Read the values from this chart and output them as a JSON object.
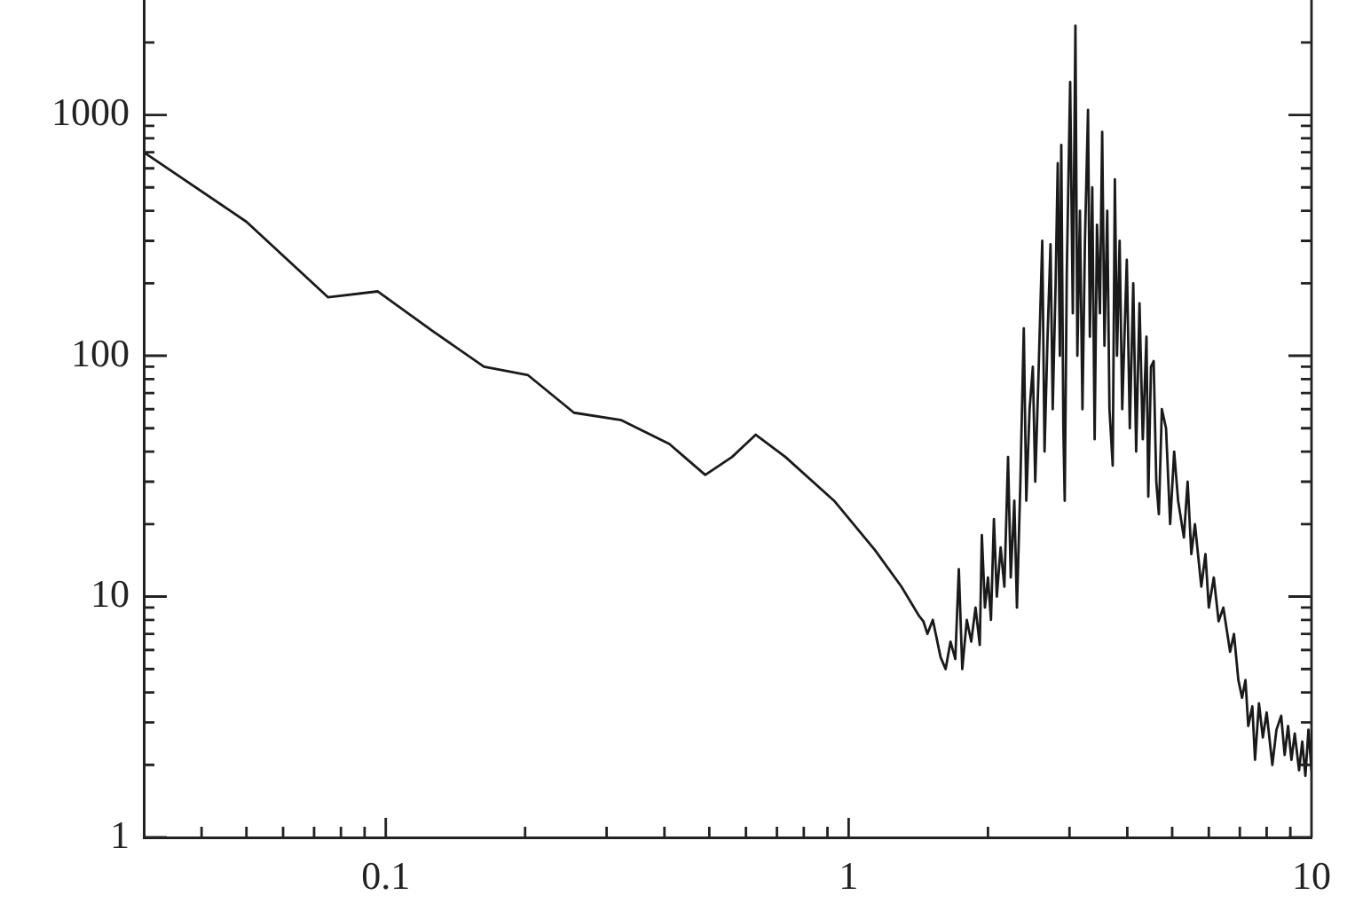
{
  "chart_data": {
    "type": "line",
    "log": "xy",
    "grid": false,
    "legend": false,
    "xlim": [
      0.03,
      10
    ],
    "ylim": [
      1,
      3000
    ],
    "xticks": [
      {
        "value": 0.04,
        "label": null
      },
      {
        "value": 0.05,
        "label": null
      },
      {
        "value": 0.06,
        "label": null
      },
      {
        "value": 0.07,
        "label": null
      },
      {
        "value": 0.08,
        "label": null
      },
      {
        "value": 0.09,
        "label": null
      },
      0.1,
      {
        "value": 0.2,
        "label": null
      },
      {
        "value": 0.3,
        "label": null
      },
      {
        "value": 0.4,
        "label": null
      },
      {
        "value": 0.5,
        "label": null
      },
      {
        "value": 0.6,
        "label": null
      },
      {
        "value": 0.7,
        "label": null
      },
      {
        "value": 0.8,
        "label": null
      },
      {
        "value": 0.9,
        "label": null
      },
      1,
      {
        "value": 2,
        "label": null
      },
      {
        "value": 3,
        "label": null
      },
      {
        "value": 4,
        "label": null
      },
      {
        "value": 5,
        "label": null
      },
      {
        "value": 6,
        "label": null
      },
      {
        "value": 7,
        "label": null
      },
      {
        "value": 8,
        "label": null
      },
      {
        "value": 9,
        "label": null
      },
      10
    ],
    "yticks": [
      1,
      {
        "value": 2,
        "label": null
      },
      {
        "value": 3,
        "label": null
      },
      {
        "value": 4,
        "label": null
      },
      {
        "value": 5,
        "label": null
      },
      {
        "value": 6,
        "label": null
      },
      {
        "value": 7,
        "label": null
      },
      {
        "value": 8,
        "label": null
      },
      {
        "value": 9,
        "label": null
      },
      10,
      {
        "value": 20,
        "label": null
      },
      {
        "value": 30,
        "label": null
      },
      {
        "value": 40,
        "label": null
      },
      {
        "value": 50,
        "label": null
      },
      {
        "value": 60,
        "label": null
      },
      {
        "value": 70,
        "label": null
      },
      {
        "value": 80,
        "label": null
      },
      {
        "value": 90,
        "label": null
      },
      100,
      {
        "value": 200,
        "label": null
      },
      {
        "value": 300,
        "label": null
      },
      {
        "value": 400,
        "label": null
      },
      {
        "value": 500,
        "label": null
      },
      {
        "value": 600,
        "label": null
      },
      {
        "value": 700,
        "label": null
      },
      {
        "value": 800,
        "label": null
      },
      {
        "value": 900,
        "label": null
      },
      1000,
      {
        "value": 2000,
        "label": null
      }
    ],
    "x": [
      0.03,
      0.05,
      0.075,
      0.096,
      0.126,
      0.163,
      0.203,
      0.255,
      0.323,
      0.41,
      0.49,
      0.56,
      0.63,
      0.73,
      0.93,
      1.14,
      1.3,
      1.42,
      1.45,
      1.48,
      1.52,
      1.58,
      1.62,
      1.66,
      1.7,
      1.73,
      1.76,
      1.8,
      1.84,
      1.88,
      1.92,
      1.94,
      1.97,
      2.0,
      2.03,
      2.06,
      2.09,
      2.13,
      2.17,
      2.21,
      2.24,
      2.28,
      2.31,
      2.35,
      2.39,
      2.42,
      2.46,
      2.5,
      2.53,
      2.57,
      2.62,
      2.65,
      2.69,
      2.73,
      2.76,
      2.8,
      2.83,
      2.86,
      2.88,
      2.91,
      2.93,
      2.96,
      3.01,
      3.05,
      3.09,
      3.12,
      3.16,
      3.2,
      3.24,
      3.29,
      3.32,
      3.36,
      3.4,
      3.44,
      3.49,
      3.53,
      3.57,
      3.62,
      3.66,
      3.72,
      3.76,
      3.8,
      3.85,
      3.9,
      3.99,
      4.05,
      4.12,
      4.18,
      4.25,
      4.32,
      4.4,
      4.44,
      4.5,
      4.56,
      4.62,
      4.68,
      4.75,
      4.85,
      4.95,
      5.05,
      5.15,
      5.3,
      5.4,
      5.5,
      5.6,
      5.78,
      5.9,
      6.0,
      6.15,
      6.3,
      6.45,
      6.67,
      6.8,
      6.95,
      7.08,
      7.2,
      7.3,
      7.45,
      7.55,
      7.7,
      7.85,
      8.0,
      8.23,
      8.4,
      8.6,
      8.75,
      8.9,
      9.05,
      9.2,
      9.4,
      9.55,
      9.7,
      9.85,
      10
    ],
    "series": [
      {
        "color": "#1a1a1a",
        "values": [
          700,
          360,
          175,
          185,
          127,
          90,
          83,
          58,
          54,
          43,
          32,
          38,
          47,
          38,
          25,
          15.6,
          11,
          8.3,
          7.9,
          7,
          8,
          5.6,
          5,
          6.5,
          5.5,
          13,
          5,
          8,
          6.5,
          9,
          6.3,
          18,
          9,
          12,
          8,
          21,
          10,
          16,
          11,
          38,
          12,
          25,
          9,
          30,
          130,
          25,
          60,
          90,
          30,
          80,
          300,
          40,
          120,
          290,
          60,
          200,
          630,
          100,
          750,
          50,
          25,
          220,
          1370,
          150,
          2350,
          100,
          400,
          60,
          300,
          1050,
          120,
          500,
          45,
          350,
          150,
          850,
          110,
          400,
          60,
          35,
          540,
          100,
          300,
          60,
          250,
          50,
          200,
          40,
          165,
          45,
          120,
          26,
          90,
          95,
          30,
          22,
          60,
          50,
          20,
          40,
          25,
          17.6,
          30,
          15,
          20,
          11,
          15,
          9,
          12,
          7.9,
          9,
          5.9,
          7,
          4.5,
          3.8,
          4.5,
          2.9,
          3.5,
          2.1,
          3.6,
          2.6,
          3.3,
          2,
          2.8,
          3.2,
          2.2,
          2.9,
          2.1,
          2.7,
          1.9,
          2.5,
          1.8,
          2.8,
          1.9
        ]
      }
    ]
  }
}
